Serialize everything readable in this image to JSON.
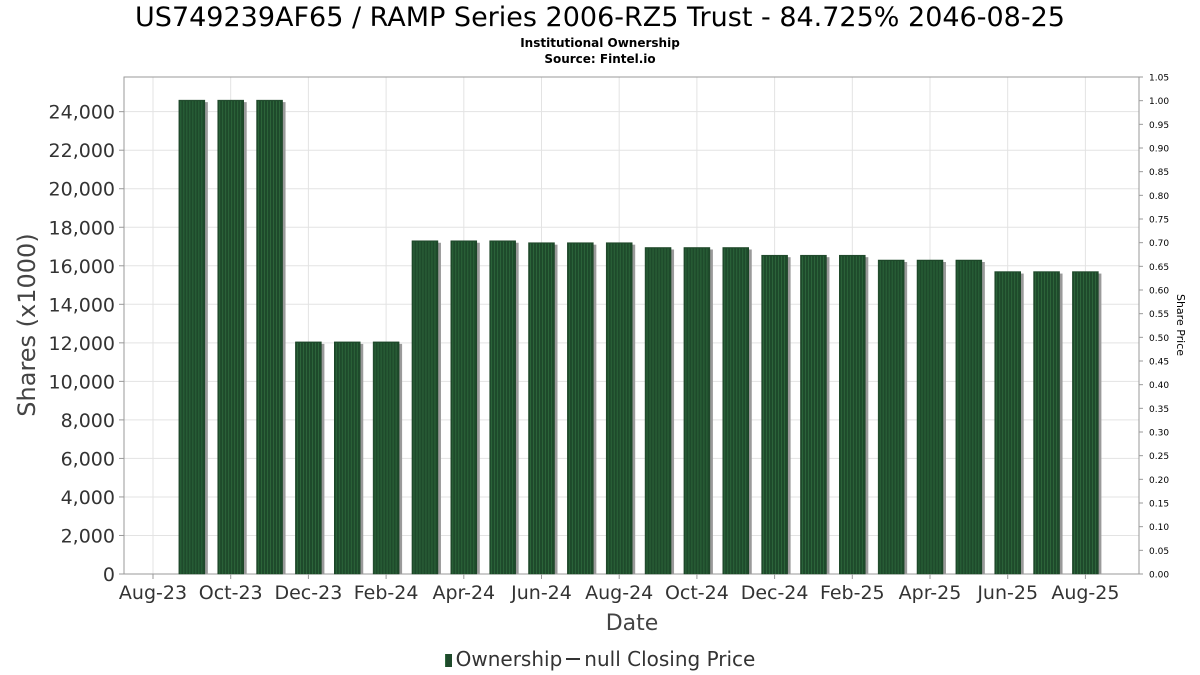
{
  "chart_data": {
    "type": "bar",
    "title": "US749239AF65 / RAMP Series 2006-RZ5 Trust - 84.725% 2046-08-25",
    "subtitle_lines": [
      "Institutional Ownership",
      "Source: Fintel.io"
    ],
    "xlabel": "Date",
    "ylabel": "Shares (x1000)",
    "y2label": "Share Price",
    "x_tick_labels": [
      "Aug-23",
      "Oct-23",
      "Dec-23",
      "Feb-24",
      "Apr-24",
      "Jun-24",
      "Aug-24",
      "Oct-24",
      "Dec-24",
      "Feb-25",
      "Apr-25",
      "Jun-25",
      "Aug-25"
    ],
    "y_ticks": [
      "0",
      "2,000",
      "4,000",
      "6,000",
      "8,000",
      "10,000",
      "12,000",
      "14,000",
      "16,000",
      "18,000",
      "20,000",
      "22,000",
      "24,000"
    ],
    "y2_ticks": [
      "0.00",
      "0.05",
      "0.10",
      "0.15",
      "0.20",
      "0.25",
      "0.30",
      "0.35",
      "0.40",
      "0.45",
      "0.50",
      "0.55",
      "0.60",
      "0.65",
      "0.70",
      "0.75",
      "0.80",
      "0.85",
      "0.90",
      "0.95",
      "1.00",
      "1.05"
    ],
    "ylim": [
      0,
      25800
    ],
    "y2lim": [
      0,
      1.05
    ],
    "grid": true,
    "legend_position": "bottom",
    "series": [
      {
        "name": "Ownership",
        "color": "#1e4a2b",
        "values": [
          24600,
          24600,
          24600,
          12050,
          12050,
          12050,
          17300,
          17300,
          17300,
          17200,
          17200,
          17200,
          16950,
          16950,
          16950,
          16550,
          16550,
          16550,
          16300,
          16300,
          16300,
          15700,
          15700,
          15700
        ]
      }
    ],
    "legend": [
      "Ownership",
      "null Closing Price"
    ]
  }
}
